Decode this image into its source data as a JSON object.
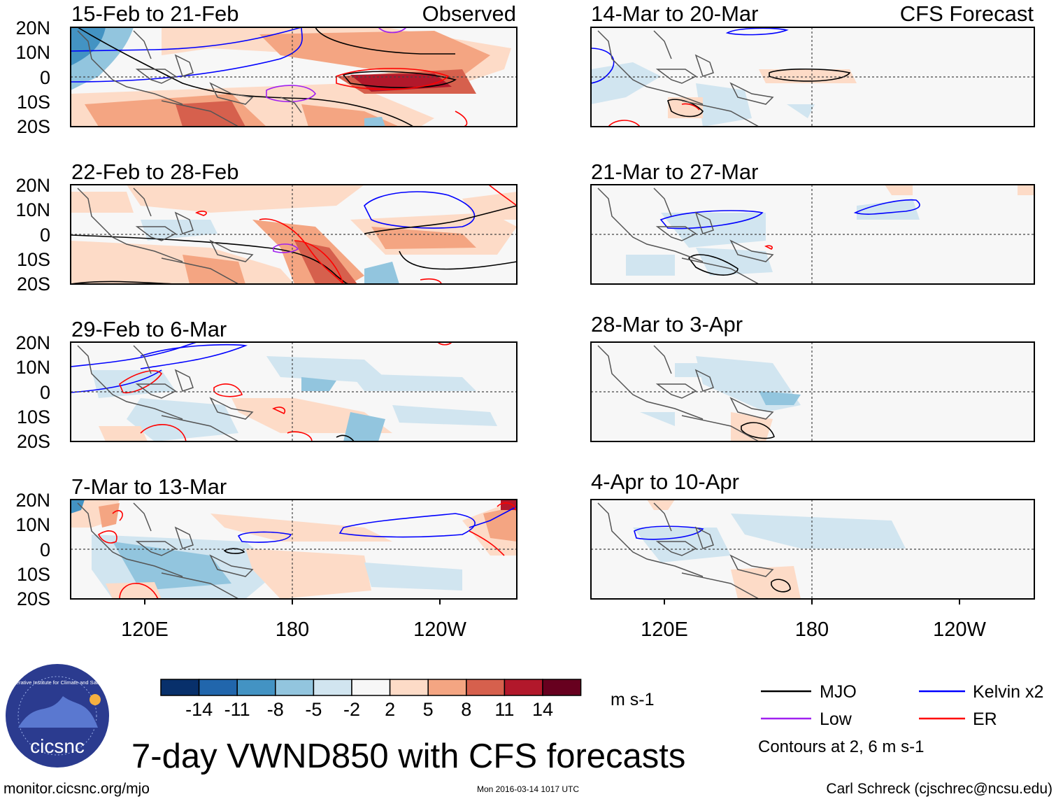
{
  "title": "7-day VWND850 with CFS forecasts",
  "footer": {
    "left": "monitor.cicsnc.org/mjo",
    "center": "Mon 2016-03-14 1017 UTC",
    "right": "Carl Schreck (cjschrec@ncsu.edu)"
  },
  "logo": {
    "ring_text": "Cooperative Institute for Climate and Satellites",
    "name": "cicsnc"
  },
  "column_headers": {
    "observed": "Observed",
    "forecast": "CFS Forecast"
  },
  "lat_labels": [
    "20N",
    "10N",
    "0",
    "10S",
    "20S"
  ],
  "lon_labels": [
    "120E",
    "180",
    "120W"
  ],
  "panels_observed": [
    {
      "period": "15-Feb to 21-Feb"
    },
    {
      "period": "22-Feb to 28-Feb"
    },
    {
      "period": "29-Feb to 6-Mar"
    },
    {
      "period": "7-Mar to 13-Mar"
    }
  ],
  "panels_forecast": [
    {
      "period": "14-Mar to 20-Mar"
    },
    {
      "period": "21-Mar to 27-Mar"
    },
    {
      "period": "28-Mar to 3-Apr"
    },
    {
      "period": "4-Apr to 10-Apr"
    }
  ],
  "colorbar": {
    "unit": "m s-1",
    "ticks": [
      "-14",
      "-11",
      "-8",
      "-5",
      "-2",
      "2",
      "5",
      "8",
      "11",
      "14"
    ],
    "colors": [
      "#08306b",
      "#2166ac",
      "#4393c3",
      "#92c5de",
      "#d1e5f0",
      "#f7f7f7",
      "#fddbc7",
      "#f4a582",
      "#d6604d",
      "#b2182b",
      "#67001f"
    ]
  },
  "legend": {
    "items": [
      {
        "label": "MJO",
        "color": "#000000"
      },
      {
        "label": "Kelvin x2",
        "color": "#0000ff"
      },
      {
        "label": "Low",
        "color": "#a020f0"
      },
      {
        "label": "ER",
        "color": "#ff0000"
      }
    ],
    "note": "Contours at 2, 6 m s-1"
  }
}
